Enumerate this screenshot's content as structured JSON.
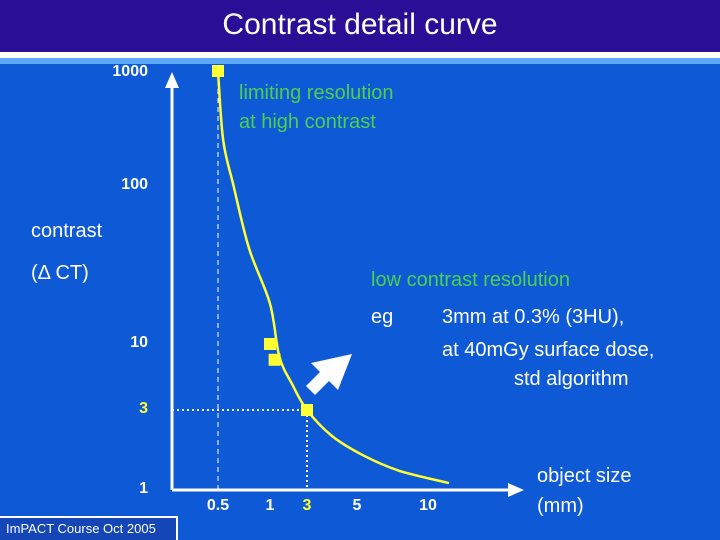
{
  "slide": {
    "title": "Contrast detail curve",
    "footer": "ImPACT Course Oct 2005"
  },
  "annotations": {
    "limiting_line1": "limiting resolution",
    "limiting_line2": "at high contrast",
    "low_contrast_heading": "low contrast resolution",
    "eg_label": "eg",
    "eg_line1": "3mm at 0.3% (3HU),",
    "eg_line2": "at 40mGy surface dose,",
    "eg_line3": "std algorithm"
  },
  "colors": {
    "background": "#0e5ad6",
    "title_bar": "#2a0e96",
    "curve": "#ffff33",
    "highlight_text": "#4dd04d",
    "axes": "#ffffff"
  },
  "chart_data": {
    "type": "line",
    "xlabel_line1": "object size",
    "xlabel_line2": "(mm)",
    "ylabel_line1": "contrast",
    "ylabel_line2": "(Δ CT)",
    "x_ticks": [
      {
        "value": 0.5,
        "label": "0.5"
      },
      {
        "value": 1,
        "label": "1"
      },
      {
        "value": 3,
        "label": "3",
        "highlight": true
      },
      {
        "value": 5,
        "label": "5"
      },
      {
        "value": 10,
        "label": "10"
      }
    ],
    "y_ticks": [
      {
        "value": 1,
        "label": "1"
      },
      {
        "value": 3,
        "label": "3",
        "highlight": true
      },
      {
        "value": 10,
        "label": "10"
      },
      {
        "value": 100,
        "label": "100"
      },
      {
        "value": 1000,
        "label": "1000"
      }
    ],
    "curve": [
      {
        "x": 0.5,
        "y": 1000
      },
      {
        "x": 0.55,
        "y": 250
      },
      {
        "x": 0.65,
        "y": 100
      },
      {
        "x": 0.8,
        "y": 40
      },
      {
        "x": 1.0,
        "y": 18
      },
      {
        "x": 1.5,
        "y": 8
      },
      {
        "x": 2.2,
        "y": 4.8
      },
      {
        "x": 3,
        "y": 3
      },
      {
        "x": 4,
        "y": 2.1
      },
      {
        "x": 5.5,
        "y": 1.6
      },
      {
        "x": 8,
        "y": 1.3
      },
      {
        "x": 11,
        "y": 1.1
      }
    ],
    "markers": [
      {
        "x": 0.5,
        "y": 1000
      },
      {
        "x": 1.0,
        "y": 10
      },
      {
        "x": 1.25,
        "y": 7.5
      },
      {
        "x": 3,
        "y": 3
      }
    ],
    "guide_lines": [
      {
        "x": 0.5,
        "y": 1000
      },
      {
        "x": 3,
        "y": 3
      }
    ],
    "grid": false
  }
}
